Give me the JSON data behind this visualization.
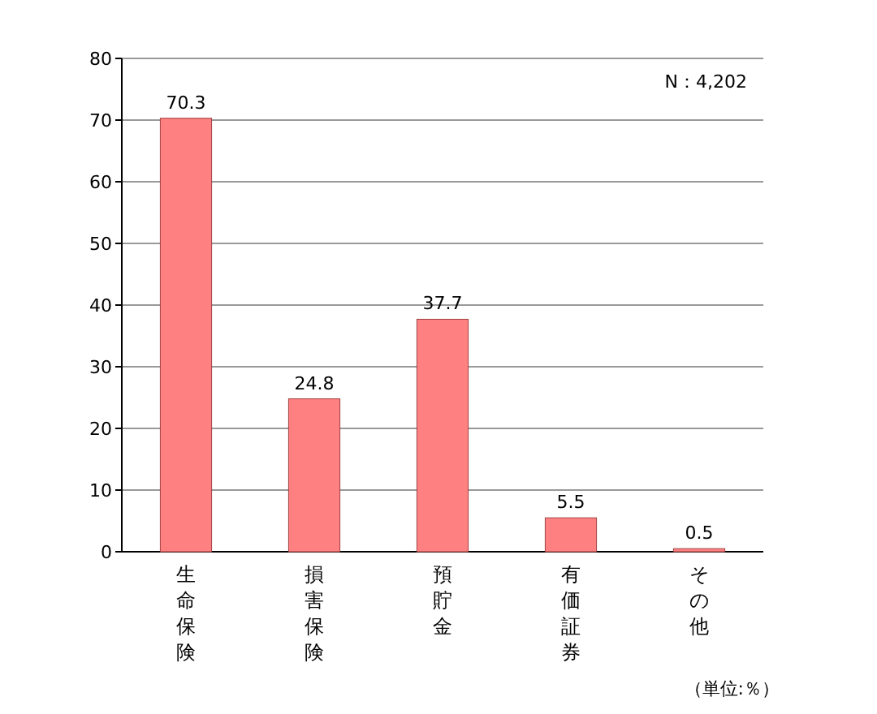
{
  "chart_data": {
    "type": "bar",
    "categories": [
      "生命保険",
      "損害保険",
      "預貯金",
      "有価証券",
      "その他"
    ],
    "values": [
      70.3,
      24.8,
      37.7,
      5.5,
      0.5
    ],
    "color": "#ff8080",
    "ylim": [
      0,
      80
    ],
    "yticks": [
      0,
      10,
      20,
      30,
      40,
      50,
      60,
      70,
      80
    ],
    "grid": "y",
    "data_labels": true,
    "annotations": [
      "N：4,202",
      "（単位:％）"
    ]
  }
}
